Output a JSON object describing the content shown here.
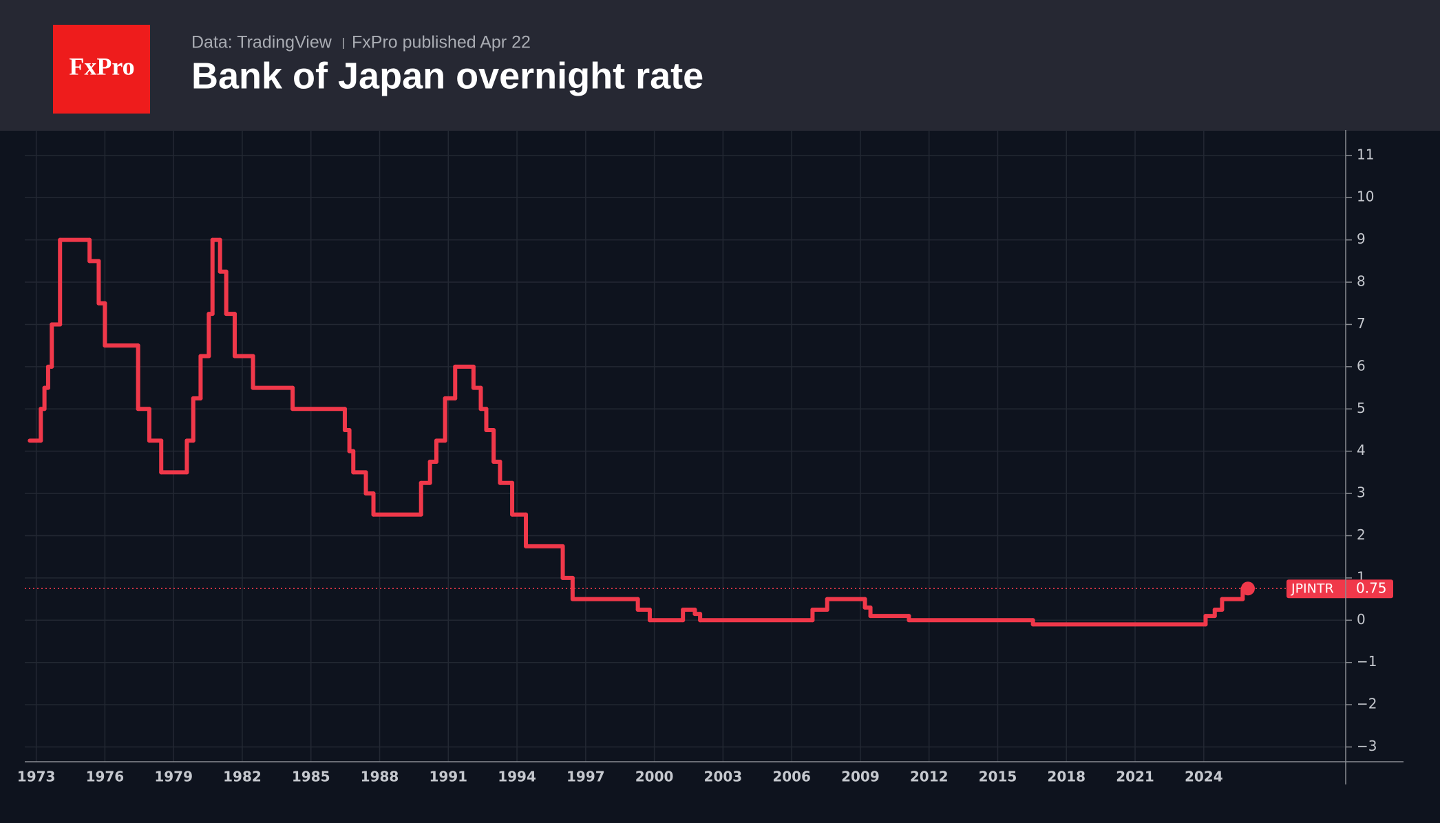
{
  "logo": "FxPro",
  "source": "Data: TradingView",
  "published": "FxPro published Apr 22",
  "chart_data": {
    "type": "step-line",
    "title": "Bank of Japan overnight rate",
    "series": [
      {
        "name": "JPINTR",
        "color": "#f0384a",
        "x": [
          1972.72,
          1973.2,
          1973.36,
          1973.52,
          1973.68,
          1974.04,
          1975.33,
          1975.73,
          1976.0,
          1977.45,
          1977.94,
          1978.46,
          1979.58,
          1979.86,
          1980.18,
          1980.54,
          1980.7,
          1981.03,
          1981.3,
          1981.67,
          1982.47,
          1984.2,
          1986.48,
          1986.68,
          1986.85,
          1987.4,
          1987.73,
          1989.81,
          1990.2,
          1990.48,
          1990.86,
          1991.3,
          1992.1,
          1992.42,
          1992.66,
          1992.98,
          1993.26,
          1993.79,
          1994.39,
          1996.0,
          1996.43,
          1999.28,
          1999.8,
          2001.25,
          2001.77,
          2002.0,
          2006.91,
          2007.55,
          2009.2,
          2009.44,
          2011.12,
          2016.54,
          2024.08,
          2024.48,
          2024.8,
          2025.7,
          2025.93
        ],
        "values": [
          4.25,
          5,
          5.5,
          6,
          7,
          9,
          8.5,
          7.5,
          6.5,
          5,
          4.25,
          3.5,
          4.25,
          5.25,
          6.25,
          7.25,
          9,
          8.25,
          7.25,
          6.25,
          5.5,
          5,
          4.5,
          4,
          3.5,
          3,
          2.5,
          3.25,
          3.75,
          4.25,
          5.25,
          6,
          5.5,
          5,
          4.5,
          3.75,
          3.25,
          2.5,
          1.75,
          1,
          0.5,
          0.25,
          0,
          0.25,
          0.15,
          0,
          0.25,
          0.5,
          0.3,
          0.1,
          0,
          -0.1,
          0.1,
          0.25,
          0.5,
          0.75,
          0.75
        ]
      }
    ],
    "xlim": [
      1972.5,
      2030.2
    ],
    "xticks": [
      1973,
      1976,
      1979,
      1982,
      1985,
      1988,
      1991,
      1994,
      1997,
      2000,
      2003,
      2006,
      2009,
      2012,
      2015,
      2018,
      2021,
      2024
    ],
    "ylim": [
      -3.35,
      11.6
    ],
    "yticks": [
      {
        "value": -3,
        "label": "−3"
      },
      {
        "value": -2,
        "label": "−2"
      },
      {
        "value": -1,
        "label": "−1"
      },
      0,
      1,
      2,
      3,
      4,
      5,
      6,
      7,
      8,
      9,
      10,
      11
    ],
    "grid": true
  }
}
